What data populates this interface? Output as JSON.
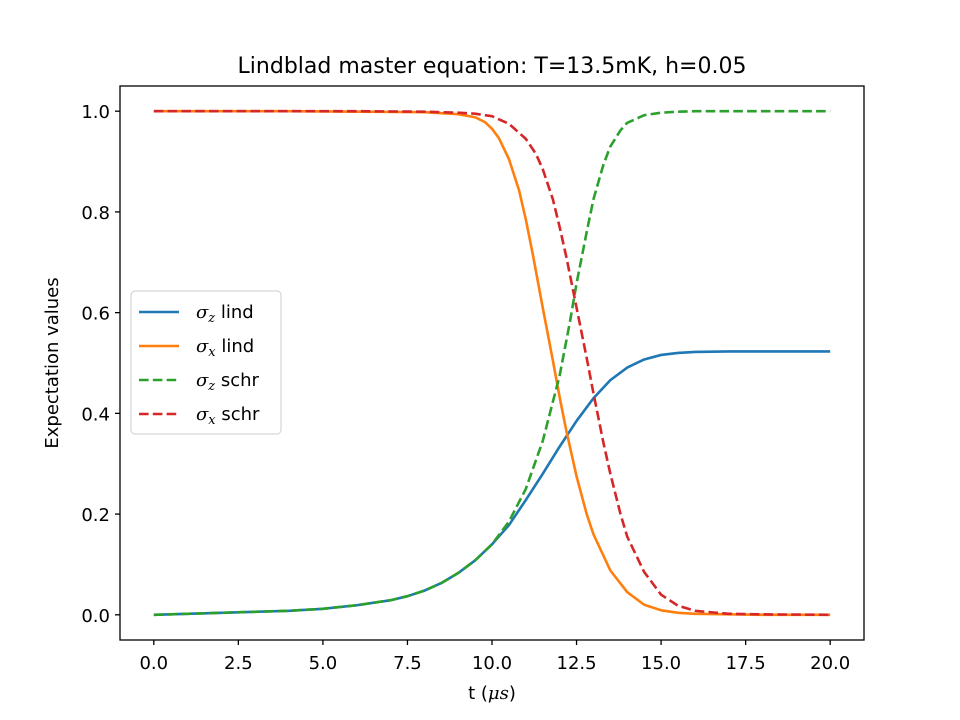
{
  "chart_data": {
    "type": "line",
    "title": "Lindblad master equation: T=13.5mK, h=0.05",
    "xlabel_text": "t (",
    "xlabel_symbol": "μs",
    "xlabel_close": ")",
    "ylabel": "Expectation values",
    "xlim": [
      -1.0,
      21.0
    ],
    "ylim": [
      -0.05,
      1.05
    ],
    "xticks": [
      0.0,
      2.5,
      5.0,
      7.5,
      10.0,
      12.5,
      15.0,
      17.5,
      20.0
    ],
    "xtick_labels": [
      "0.0",
      "2.5",
      "5.0",
      "7.5",
      "10.0",
      "12.5",
      "15.0",
      "17.5",
      "20.0"
    ],
    "yticks": [
      0.0,
      0.2,
      0.4,
      0.6,
      0.8,
      1.0
    ],
    "ytick_labels": [
      "0.0",
      "0.2",
      "0.4",
      "0.6",
      "0.8",
      "1.0"
    ],
    "grid": false,
    "legend_position": "center-left",
    "series": [
      {
        "symbol": "σ",
        "subscript": "z",
        "suffix": " lind",
        "color": "#1f77b4",
        "dashed": false,
        "x": [
          0,
          2,
          4,
          5,
          6,
          7,
          7.5,
          8,
          8.5,
          9,
          9.5,
          10,
          10.5,
          11,
          11.5,
          12,
          12.5,
          13,
          13.5,
          14,
          14.5,
          15,
          15.5,
          16,
          17,
          18,
          19,
          20
        ],
        "y": [
          0.0,
          0.004,
          0.008,
          0.012,
          0.019,
          0.029,
          0.037,
          0.048,
          0.063,
          0.083,
          0.108,
          0.14,
          0.178,
          0.228,
          0.28,
          0.334,
          0.385,
          0.43,
          0.466,
          0.491,
          0.507,
          0.516,
          0.52,
          0.522,
          0.523,
          0.523,
          0.523,
          0.523
        ]
      },
      {
        "symbol": "σ",
        "subscript": "x",
        "suffix": " lind",
        "color": "#ff7f0e",
        "dashed": false,
        "x": [
          0,
          4,
          6,
          8,
          9,
          9.5,
          9.8,
          10,
          10.2,
          10.5,
          10.8,
          11,
          11.2,
          11.5,
          11.8,
          12,
          12.2,
          12.5,
          12.8,
          13,
          13.5,
          14,
          14.5,
          15,
          15.5,
          16,
          17,
          18,
          20
        ],
        "y": [
          1.0,
          1.0,
          0.999,
          0.998,
          0.994,
          0.988,
          0.978,
          0.965,
          0.947,
          0.905,
          0.843,
          0.785,
          0.718,
          0.61,
          0.505,
          0.432,
          0.365,
          0.275,
          0.2,
          0.16,
          0.088,
          0.045,
          0.02,
          0.009,
          0.004,
          0.002,
          0.001,
          0.0,
          0.0
        ]
      },
      {
        "symbol": "σ",
        "subscript": "z",
        "suffix": " schr",
        "color": "#2ca02c",
        "dashed": true,
        "x": [
          0,
          2,
          4,
          5,
          6,
          7,
          7.5,
          8,
          8.5,
          9,
          9.5,
          10,
          10.5,
          11,
          11.5,
          12,
          12.3,
          12.5,
          12.8,
          13,
          13.3,
          13.5,
          13.8,
          14,
          14.5,
          15,
          15.5,
          16,
          17,
          20
        ],
        "y": [
          0.0,
          0.004,
          0.008,
          0.012,
          0.019,
          0.029,
          0.037,
          0.048,
          0.063,
          0.083,
          0.108,
          0.14,
          0.185,
          0.25,
          0.345,
          0.475,
          0.58,
          0.658,
          0.76,
          0.825,
          0.895,
          0.93,
          0.962,
          0.977,
          0.992,
          0.997,
          0.999,
          1.0,
          1.0,
          1.0
        ]
      },
      {
        "symbol": "σ",
        "subscript": "x",
        "suffix": " schr",
        "color": "#d62728",
        "dashed": true,
        "x": [
          0,
          4,
          6,
          8,
          9,
          9.5,
          10,
          10.5,
          11,
          11.3,
          11.5,
          11.8,
          12,
          12.2,
          12.5,
          12.8,
          13,
          13.3,
          13.5,
          13.8,
          14,
          14.5,
          15,
          15.5,
          16,
          17,
          18,
          20
        ],
        "y": [
          1.0,
          1.0,
          1.0,
          0.999,
          0.997,
          0.995,
          0.99,
          0.975,
          0.945,
          0.915,
          0.885,
          0.825,
          0.77,
          0.71,
          0.61,
          0.51,
          0.44,
          0.34,
          0.28,
          0.2,
          0.155,
          0.085,
          0.04,
          0.018,
          0.008,
          0.002,
          0.001,
          0.0
        ]
      }
    ]
  }
}
